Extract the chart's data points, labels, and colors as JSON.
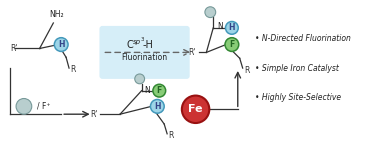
{
  "bg_color": "#ffffff",
  "box_color": "#d6eef8",
  "arrow_dashed_color": "#666666",
  "arrow_solid_color": "#333333",
  "bullet1": "N-Directed Fluorination",
  "bullet2": "Simple Iron Catalyst",
  "bullet3": "Highly Site-Selective",
  "cyan_circle_color": "#9dd5e8",
  "cyan_edge_color": "#4499bb",
  "green_circle_color": "#88cc77",
  "green_edge_color": "#338833",
  "red_circle_color": "#cc3333",
  "red_edge_color": "#991111",
  "gray_circle_color": "#b8cece",
  "gray_edge_color": "#779999",
  "line_color": "#333333",
  "text_color": "#222222",
  "R_color": "#333333"
}
